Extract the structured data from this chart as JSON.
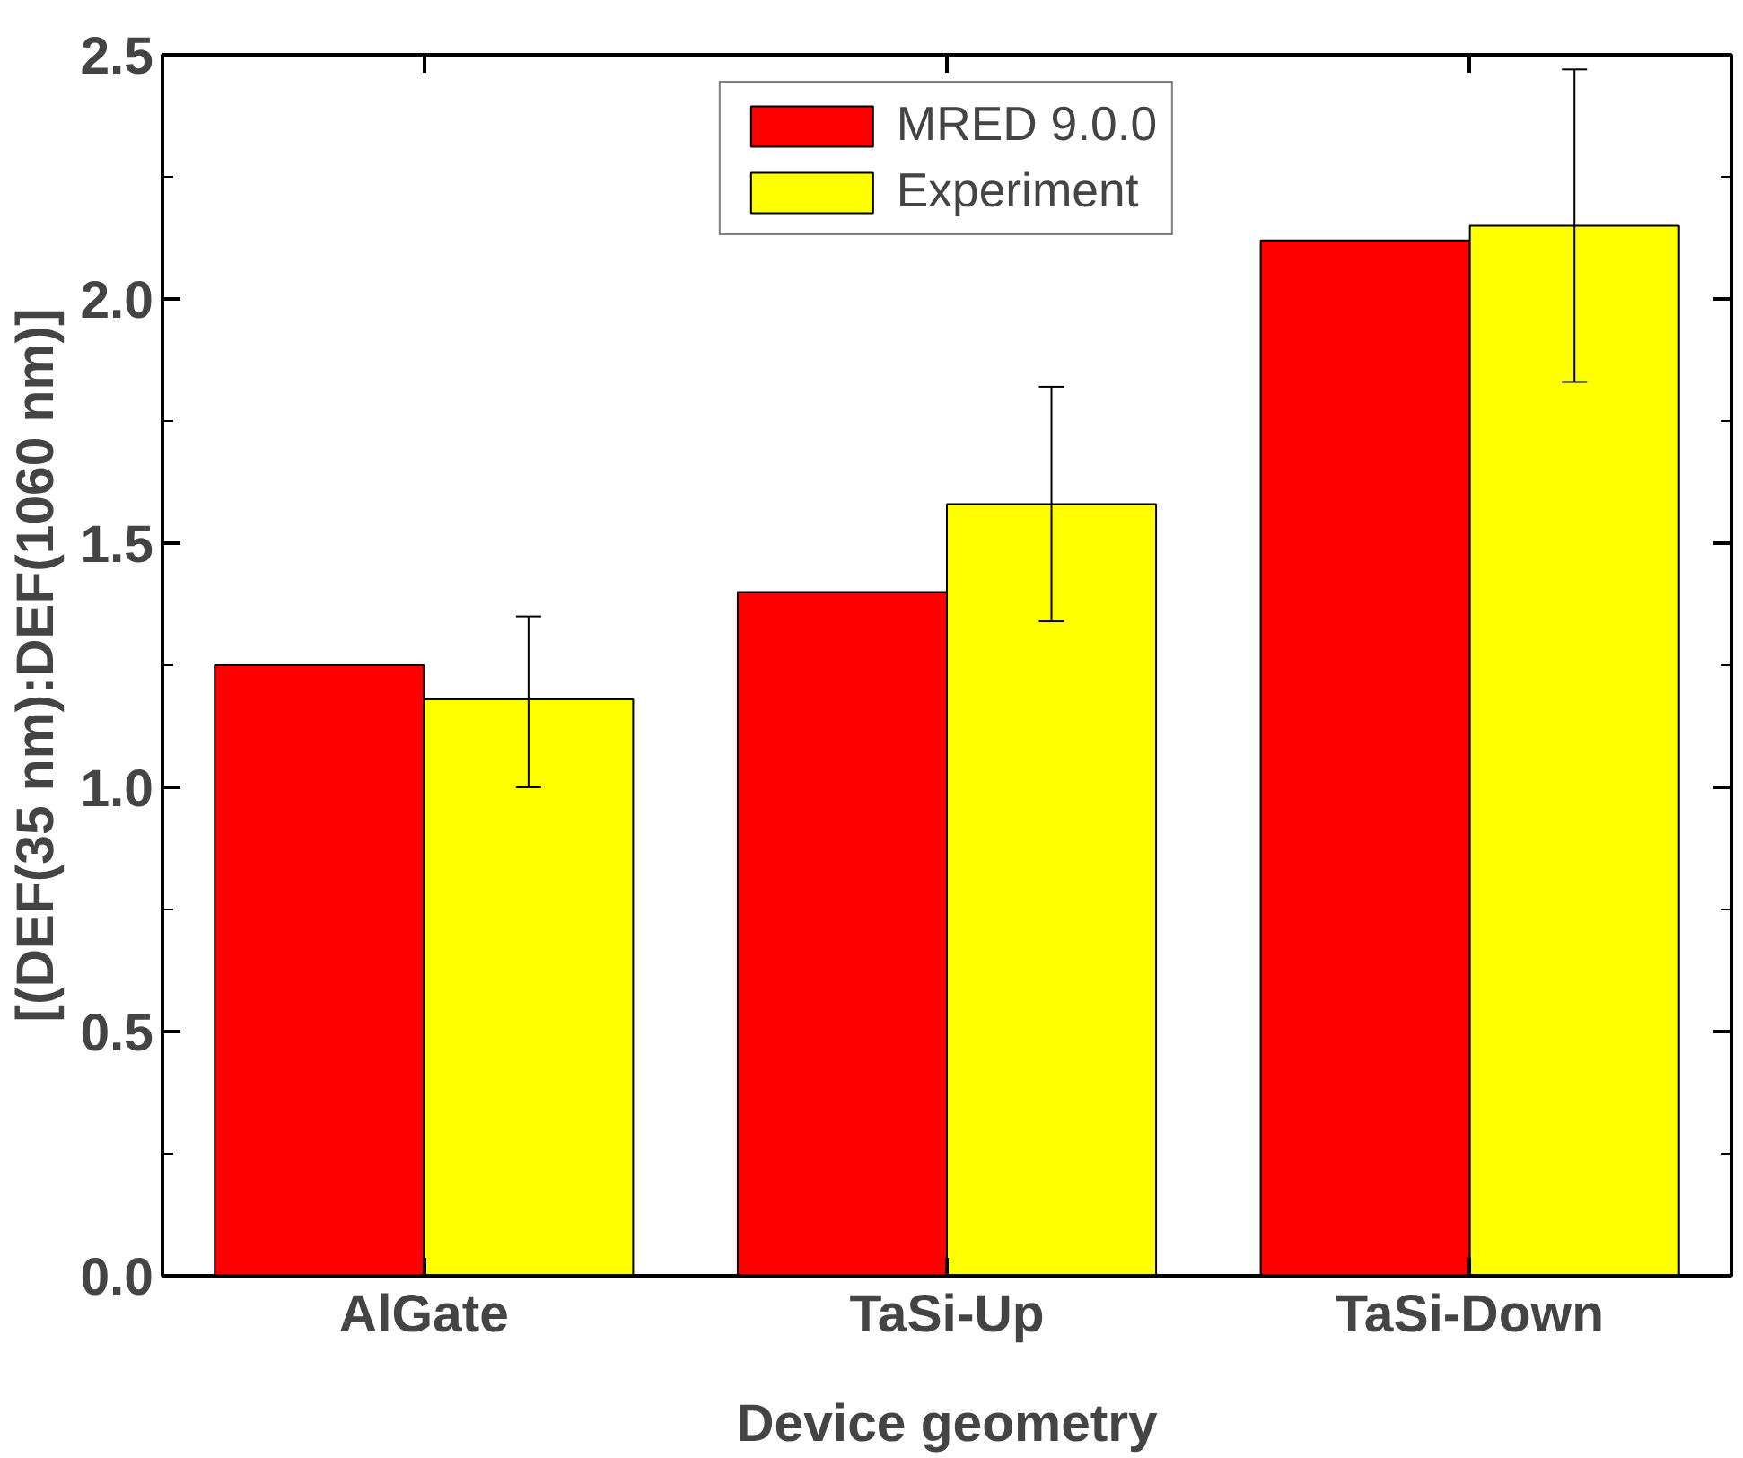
{
  "chart_data": {
    "type": "bar",
    "xlabel": "Device geometry",
    "ylabel": "[(DEF(35 nm):DEF(1060 nm)]",
    "categories": [
      "AlGate",
      "TaSi-Up",
      "TaSi-Down"
    ],
    "series": [
      {
        "name": "MRED 9.0.0",
        "color": "#ff0000",
        "values": [
          1.25,
          1.4,
          2.12
        ]
      },
      {
        "name": "Experiment",
        "color": "#ffff00",
        "values": [
          1.18,
          1.58,
          2.15
        ],
        "errors": [
          [
            1.0,
            1.35
          ],
          [
            1.34,
            1.82
          ],
          [
            1.83,
            2.47
          ]
        ]
      }
    ],
    "ylim": [
      0,
      2.5
    ],
    "yticks": [
      {
        "value": 0,
        "label": "0.0"
      },
      0.5,
      {
        "value": 1,
        "label": "1.0"
      },
      1.5,
      {
        "value": 2,
        "label": "2.0"
      },
      2.5
    ],
    "grid": false,
    "legend": "top"
  }
}
